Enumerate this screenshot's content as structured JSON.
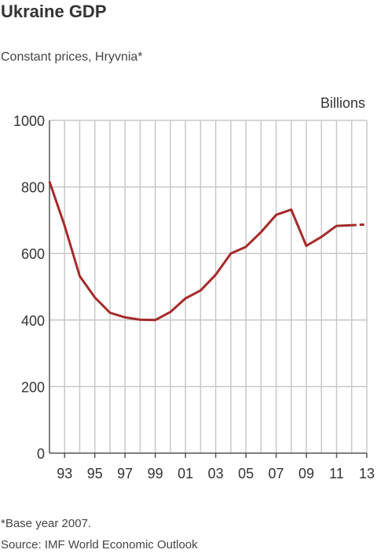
{
  "header": {
    "title": "Ukraine GDP",
    "subtitle": "Constant prices, Hryvnia*"
  },
  "footer": {
    "footnote": "*Base year 2007.",
    "source": "Source: IMF World Economic Outlook"
  },
  "colors": {
    "line": "#a52a2a",
    "grid": "#c8c8c8",
    "axis": "#555555"
  },
  "chart_data": {
    "type": "line",
    "title": "Ukraine GDP",
    "subtitle": "Constant prices, Hryvnia*",
    "unit_label": "Billions",
    "xlabel": "",
    "ylabel": "",
    "xlim": [
      1992,
      2013
    ],
    "ylim": [
      0,
      1000
    ],
    "yticks": [
      0,
      200,
      400,
      600,
      800,
      1000
    ],
    "xticks": [
      1993,
      1995,
      1997,
      1999,
      2001,
      2003,
      2005,
      2007,
      2009,
      2011,
      2013
    ],
    "xtick_labels": [
      "93",
      "95",
      "97",
      "99",
      "01",
      "03",
      "05",
      "07",
      "09",
      "11",
      "13"
    ],
    "grid": true,
    "series": [
      {
        "style": "solid",
        "x": [
          1992,
          1993,
          1994,
          1995,
          1996,
          1997,
          1998,
          1999,
          2000,
          2001,
          2002,
          2003,
          2004,
          2005,
          2006,
          2007,
          2008,
          2009,
          2010,
          2011,
          2012
        ],
        "values": [
          816,
          684,
          532,
          468,
          422,
          408,
          401,
          400,
          424,
          465,
          489,
          536,
          600,
          620,
          664,
          716,
          732,
          623,
          650,
          683,
          685
        ]
      },
      {
        "style": "dashed",
        "x": [
          2012,
          2013
        ],
        "values": [
          685,
          687
        ]
      }
    ]
  }
}
